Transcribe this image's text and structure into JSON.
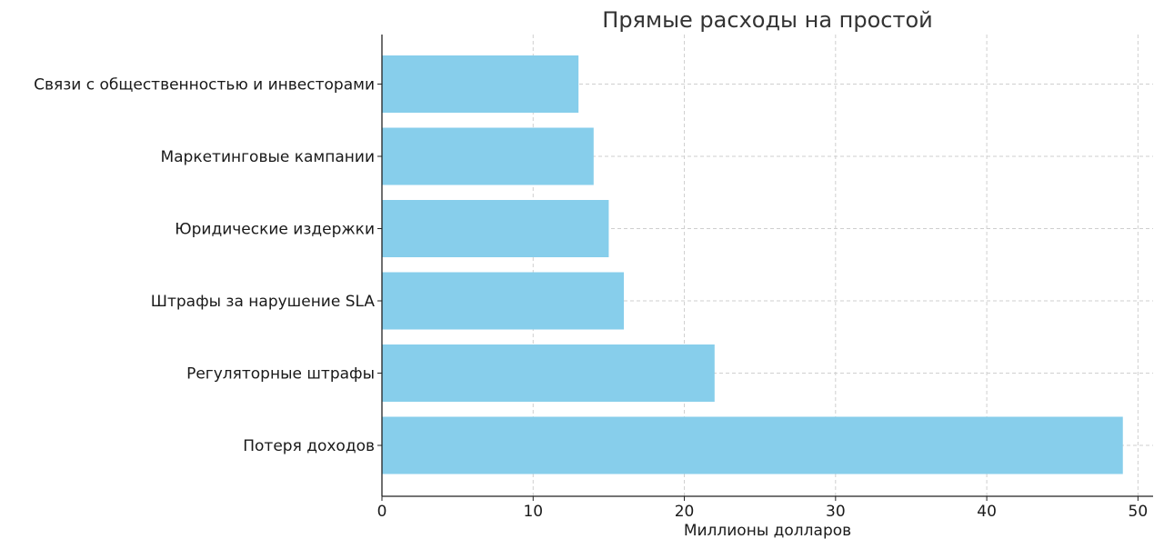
{
  "chart_data": {
    "type": "bar",
    "orientation": "horizontal",
    "title": "Прямые расходы на простой",
    "xlabel": "Миллионы долларов",
    "ylabel": "",
    "categories": [
      "Потеря доходов",
      "Регуляторные штрафы",
      "Штрафы за нарушение SLA",
      "Юридические издержки",
      "Маркетинговые кампании",
      "Связи с общественностью и инвесторами"
    ],
    "values": [
      49,
      22,
      16,
      15,
      14,
      13
    ],
    "xlim": [
      0,
      51
    ],
    "xticks": [
      0,
      10,
      20,
      30,
      40,
      50
    ],
    "grid": true,
    "bar_color": "#87ceeb"
  }
}
